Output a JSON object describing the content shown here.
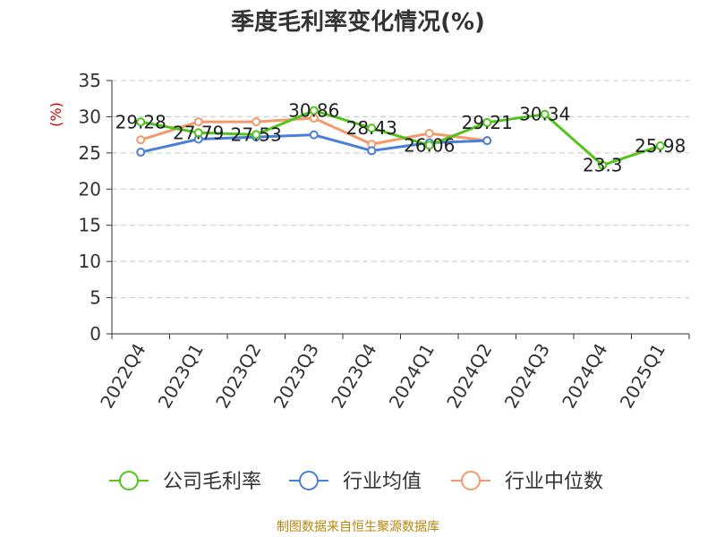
{
  "chart_data": {
    "type": "line",
    "title": "季度毛利率变化情况(%)",
    "ylabel": "(%)",
    "ylim": [
      0,
      35
    ],
    "yticks": [
      0,
      5,
      10,
      15,
      20,
      25,
      30,
      35
    ],
    "grid": true,
    "legend_position": "bottom",
    "categories": [
      "2022Q4",
      "2023Q1",
      "2023Q2",
      "2023Q3",
      "2023Q4",
      "2024Q1",
      "2024Q2",
      "2024Q3",
      "2024Q4",
      "2025Q1"
    ],
    "series": [
      {
        "name": "公司毛利率",
        "color": "#52c41a",
        "values": [
          29.28,
          27.79,
          27.53,
          30.86,
          28.43,
          26.06,
          29.21,
          30.34,
          23.3,
          25.98
        ],
        "labels": [
          "29.28",
          "27.79",
          "27.53",
          "30.86",
          "28.43",
          "26.06",
          "29.21",
          "30.34",
          "23.3",
          "25.98"
        ]
      },
      {
        "name": "行业均值",
        "color": "#4a7fd8",
        "values": [
          25.1,
          26.9,
          27.2,
          27.5,
          25.3,
          26.4,
          26.7,
          null,
          null,
          null
        ]
      },
      {
        "name": "行业中位数",
        "color": "#f29a6b",
        "values": [
          26.8,
          29.3,
          29.3,
          29.8,
          26.2,
          27.7,
          26.7,
          null,
          null,
          null
        ]
      }
    ],
    "source": "制图数据来自恒生聚源数据库"
  }
}
